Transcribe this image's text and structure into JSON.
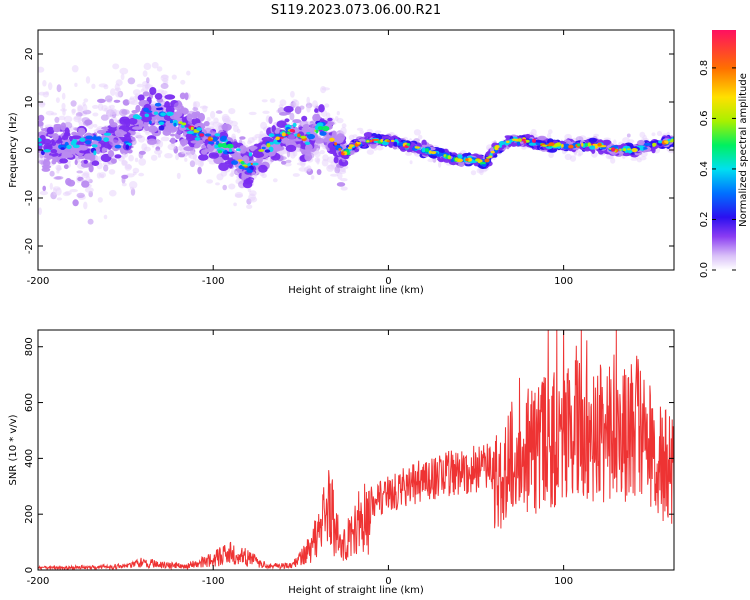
{
  "figure": {
    "title": "S119.2023.073.06.00.R21"
  },
  "colors": {
    "snr_line": "#ee3333",
    "colormap": [
      "#ffffff",
      "#e8d4fb",
      "#b98af0",
      "#7a2cf0",
      "#2a10f0",
      "#0066ff",
      "#00d8f0",
      "#00f060",
      "#b8f000",
      "#ffd400",
      "#ff6a00",
      "#ff1060"
    ]
  },
  "chart_data": [
    {
      "type": "heatmap",
      "xlabel": "Height of straight line (km)",
      "ylabel": "Frequency (Hz)",
      "xlim": [
        -200,
        163
      ],
      "ylim": [
        -25,
        25
      ],
      "xticks": [
        -200,
        -100,
        0,
        100
      ],
      "xtick_labels": [
        "-200",
        "-100",
        "0",
        "100"
      ],
      "yticks": [
        -20,
        -10,
        0,
        10,
        20
      ],
      "ytick_labels": [
        "-20",
        "-10",
        "0",
        "10",
        "20"
      ],
      "colorbar": {
        "label": "Normalized spectral amplitude",
        "range": [
          0,
          0.95
        ],
        "ticks": [
          0.0,
          0.2,
          0.4,
          0.6,
          0.8
        ],
        "tick_labels": [
          "0.0",
          "0.2",
          "0.4",
          "0.6",
          "0.8"
        ]
      },
      "ridge_center_hz": [
        [
          -200,
          1
        ],
        [
          -180,
          1
        ],
        [
          -160,
          2
        ],
        [
          -150,
          2
        ],
        [
          -140,
          8
        ],
        [
          -130,
          7
        ],
        [
          -120,
          6
        ],
        [
          -110,
          4
        ],
        [
          -100,
          2
        ],
        [
          -90,
          0
        ],
        [
          -80,
          -4
        ],
        [
          -72,
          0
        ],
        [
          -65,
          2
        ],
        [
          -55,
          4
        ],
        [
          -45,
          2
        ],
        [
          -38,
          5
        ],
        [
          -30,
          1
        ],
        [
          -25,
          -1
        ],
        [
          -20,
          1
        ],
        [
          -10,
          2
        ],
        [
          0,
          2
        ],
        [
          10,
          1
        ],
        [
          20,
          0
        ],
        [
          30,
          -1
        ],
        [
          40,
          -2
        ],
        [
          50,
          -2
        ],
        [
          55,
          -3
        ],
        [
          60,
          0
        ],
        [
          70,
          2
        ],
        [
          80,
          2
        ],
        [
          90,
          1
        ],
        [
          100,
          1
        ],
        [
          110,
          1
        ],
        [
          120,
          1
        ],
        [
          130,
          0
        ],
        [
          140,
          0
        ],
        [
          150,
          1
        ],
        [
          163,
          2
        ]
      ]
    },
    {
      "type": "line",
      "xlabel": "Height of straight line (km)",
      "ylabel": "SNR (10 * v/v)",
      "xlim": [
        -200,
        163
      ],
      "ylim": [
        0,
        860
      ],
      "xticks": [
        -200,
        -100,
        0,
        100
      ],
      "xtick_labels": [
        "-200",
        "-100",
        "0",
        "100"
      ],
      "yticks": [
        0,
        200,
        400,
        600,
        800
      ],
      "ytick_labels": [
        "0",
        "200",
        "400",
        "600",
        "800"
      ],
      "series": [
        {
          "envelope_x": [
            -200,
            -170,
            -150,
            -140,
            -130,
            -115,
            -100,
            -90,
            -80,
            -70,
            -55,
            -45,
            -38,
            -33,
            -30,
            -25,
            -20,
            -15,
            -10,
            0,
            10,
            20,
            40,
            60,
            65,
            70,
            90,
            100,
            120,
            140,
            150,
            163
          ],
          "envelope_y": [
            10,
            15,
            20,
            40,
            25,
            20,
            55,
            90,
            60,
            25,
            20,
            110,
            250,
            330,
            200,
            120,
            230,
            260,
            260,
            300,
            320,
            350,
            380,
            400,
            420,
            520,
            580,
            620,
            640,
            680,
            550,
            450
          ]
        }
      ]
    }
  ]
}
